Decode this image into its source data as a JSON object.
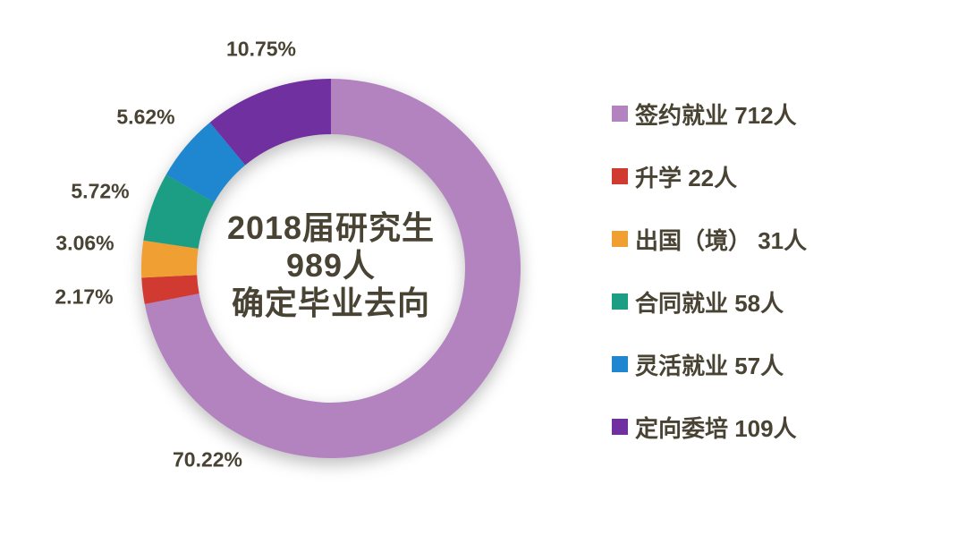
{
  "chart_data": {
    "type": "pie",
    "subtype": "donut",
    "center_title": [
      "2018届研究生",
      "989人",
      "确定毕业去向"
    ],
    "total_shown": 989,
    "start_angle_deg": 0,
    "direction": "clockwise",
    "legend_position": "right",
    "slices": [
      {
        "label": "签约就业",
        "count": 712,
        "unit": "人",
        "pct_label": "70.22%",
        "color": "#b383c0"
      },
      {
        "label": "升学",
        "count": 22,
        "unit": "人",
        "pct_label": "2.17%",
        "color": "#d13a30"
      },
      {
        "label": "出国（境）",
        "count": 31,
        "unit": "人",
        "pct_label": "3.06%",
        "color": "#f0a032"
      },
      {
        "label": "合同就业",
        "count": 58,
        "unit": "人",
        "pct_label": "5.72%",
        "color": "#1b9e84"
      },
      {
        "label": "灵活就业",
        "count": 57,
        "unit": "人",
        "pct_label": "5.62%",
        "color": "#1f86d0"
      },
      {
        "label": "定向委培",
        "count": 109,
        "unit": "人",
        "pct_label": "10.75%",
        "color": "#7030a0"
      }
    ],
    "legend": [
      {
        "label": "签约就业 712人",
        "color": "#b383c0"
      },
      {
        "label": "升学 22人",
        "color": "#d13a30"
      },
      {
        "label": "出国（境） 31人",
        "color": "#f0a032"
      },
      {
        "label": "合同就业 58人",
        "color": "#1b9e84"
      },
      {
        "label": "灵活就业 57人",
        "color": "#1f86d0"
      },
      {
        "label": "定向委培 109人",
        "color": "#7030a0"
      }
    ]
  },
  "colors": {
    "text": "#494334",
    "background": "#ffffff"
  }
}
